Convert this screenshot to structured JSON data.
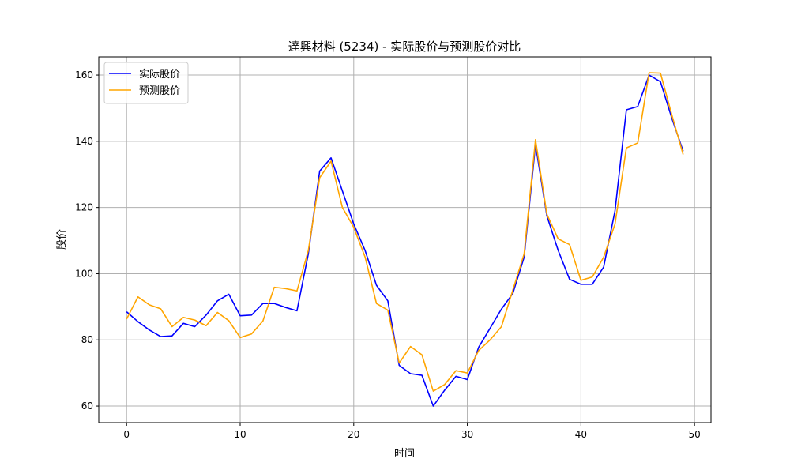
{
  "chart_data": {
    "type": "line",
    "title": "達興材料 (5234) - 实际股价与预测股价对比",
    "xlabel": "时间",
    "ylabel": "股价",
    "xlim": [
      -2.45,
      51.45
    ],
    "ylim": [
      55,
      165.5
    ],
    "xticks": [
      0,
      10,
      20,
      30,
      40,
      50
    ],
    "yticks": [
      60,
      80,
      100,
      120,
      140,
      160
    ],
    "grid": true,
    "legend_position": "top-left",
    "x": [
      0,
      1,
      2,
      3,
      4,
      5,
      6,
      7,
      8,
      9,
      10,
      11,
      12,
      13,
      14,
      15,
      16,
      17,
      18,
      19,
      20,
      21,
      22,
      23,
      24,
      25,
      26,
      27,
      28,
      29,
      30,
      31,
      32,
      33,
      34,
      35,
      36,
      37,
      38,
      39,
      40,
      41,
      42,
      43,
      44,
      45,
      46,
      47,
      48,
      49
    ],
    "series": [
      {
        "name": "实际股价",
        "color": "#0000ff",
        "values": [
          88.5,
          85.5,
          83,
          81,
          81.2,
          85,
          84,
          87.5,
          91.8,
          93.8,
          87.3,
          87.5,
          91,
          91,
          89.8,
          88.8,
          106,
          131,
          135,
          125,
          115,
          107,
          96.5,
          91.8,
          72.3,
          69.8,
          69.3,
          60,
          64.8,
          69,
          68,
          77.8,
          83.5,
          89.3,
          94,
          105,
          139,
          117.5,
          107,
          98.3,
          96.8,
          96.8,
          102,
          119,
          149.5,
          150.5,
          160,
          158,
          147,
          137
        ]
      },
      {
        "name": "预测股价",
        "color": "#ffa500",
        "values": [
          86.3,
          93,
          90.6,
          89.4,
          84,
          86.8,
          86,
          84.3,
          88.3,
          85.8,
          80.7,
          81.8,
          85.7,
          95.9,
          95.5,
          94.8,
          107,
          129,
          134,
          120,
          114,
          105,
          91,
          89,
          73,
          78,
          75.5,
          64.5,
          66.5,
          70.7,
          70,
          76.8,
          80,
          84,
          95,
          106,
          140.5,
          118,
          110.5,
          108.8,
          98,
          99,
          105,
          115,
          138,
          139.5,
          160.7,
          160.6,
          148,
          136
        ]
      }
    ]
  }
}
